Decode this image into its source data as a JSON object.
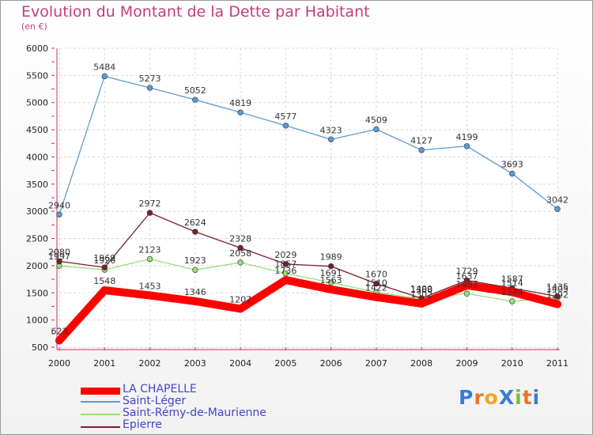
{
  "title": "Evolution du Montant de la Dette par Habitant",
  "subtitle": "(en €)",
  "logo_text": "ProXiti",
  "chart_data": {
    "type": "line",
    "title": "Evolution du Montant de la Dette par Habitant",
    "ylabel": "(en €)",
    "xlabel": "",
    "x": [
      2000,
      2001,
      2002,
      2003,
      2004,
      2005,
      2006,
      2007,
      2008,
      2009,
      2010,
      2011
    ],
    "x_tick_labels": [
      "2000",
      "2001",
      "2002",
      "2003",
      "2004",
      "2005",
      "2006",
      "2007",
      "2008",
      "2009",
      "2010",
      "2011"
    ],
    "ylim": [
      500,
      6000
    ],
    "y_ticks": [
      500,
      1000,
      1500,
      2000,
      2500,
      3000,
      3500,
      4000,
      4500,
      5000,
      5500,
      6000
    ],
    "y_tick_labels": [
      "500",
      "1000",
      "1500",
      "2000",
      "2500",
      "3000",
      "3500",
      "4000",
      "4500",
      "5000",
      "5500",
      "6000"
    ],
    "grid": true,
    "legend_position": "bottom-left",
    "series": [
      {
        "name": "LA CHAPELLE",
        "color": "#ff0000",
        "values": [
          623,
          1548,
          1453,
          1346,
          1207,
          1736,
          1563,
          1422,
          1302,
          1637,
          1514,
          1292
        ],
        "labels": [
          "623",
          "1548",
          "1453",
          "1346",
          "1207",
          "1736",
          "1563",
          "1422",
          "1302",
          "1637",
          "1514",
          "1292"
        ]
      },
      {
        "name": "Saint-Léger",
        "color": "#5b9bd5",
        "values": [
          2940,
          5484,
          5273,
          5052,
          4819,
          4577,
          4323,
          4509,
          4127,
          4199,
          3693,
          3042
        ],
        "labels": [
          "2940",
          "5484",
          "5273",
          "5052",
          "4819",
          "4577",
          "4323",
          "4509",
          "4127",
          "4199",
          "3693",
          "3042"
        ]
      },
      {
        "name": "Saint-Rémy-de-Maurienne",
        "color": "#99dd77",
        "values": [
          1997,
          1926,
          2123,
          1923,
          2058,
          1857,
          1691,
          1510,
          1388,
          1487,
          1344,
          1405
        ],
        "labels": [
          "1997",
          "1926",
          "2123",
          "1923",
          "2058",
          "1857",
          "1691",
          "1510",
          "1388",
          "1487",
          "1344",
          "1405"
        ]
      },
      {
        "name": "Epierre",
        "color": "#7a1f2b",
        "values": [
          2080,
          1969,
          2972,
          2624,
          2328,
          2029,
          1989,
          1670,
          1400,
          1729,
          1587,
          1435
        ],
        "labels": [
          "2080",
          "1969",
          "2972",
          "2624",
          "2328",
          "2029",
          "1989",
          "1670",
          "1400",
          "1729",
          "1587",
          "1435"
        ]
      }
    ]
  }
}
